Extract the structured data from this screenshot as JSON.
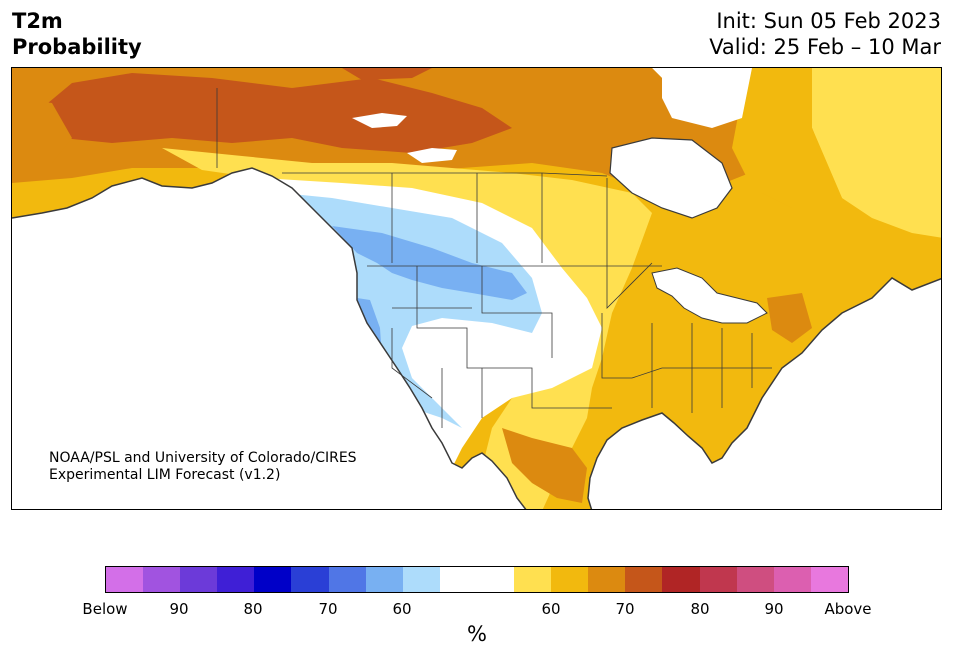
{
  "header": {
    "variable": "T2m",
    "measure": "Probability",
    "init": "Init: Sun 05 Feb 2023",
    "valid": "Valid: 25 Feb – 10 Mar"
  },
  "credit": {
    "line1": "NOAA/PSL and University of Colorado/CIRES",
    "line2": "Experimental LIM Forecast (v1.2)"
  },
  "colorbar": {
    "colors": [
      "#d36fe8",
      "#a153e0",
      "#6c3ad9",
      "#3f1fd6",
      "#0000c8",
      "#2a3fd6",
      "#5076e6",
      "#78b0f2",
      "#addcfb",
      "#ffffff",
      "#ffffff",
      "#ffe050",
      "#f2b90e",
      "#dc8a10",
      "#c5561a",
      "#b02525",
      "#c0374e",
      "#cf4e80",
      "#dc5fb0",
      "#e878de"
    ],
    "labels": [
      "Below",
      "90",
      "80",
      "70",
      "60",
      "60",
      "70",
      "80",
      "90",
      "Above"
    ],
    "unit": "%"
  },
  "map": {
    "region": "North America",
    "legend_meaning": "Temperature at 2 m probability of below / above normal",
    "colors": {
      "p60_above": "#ffe050",
      "p65_above": "#f2b90e",
      "p70_above": "#dc8a10",
      "p75_above": "#c5561a",
      "p60_below": "#addcfb",
      "p65_below": "#78b0f2",
      "coast": "#3a3a3a"
    }
  }
}
